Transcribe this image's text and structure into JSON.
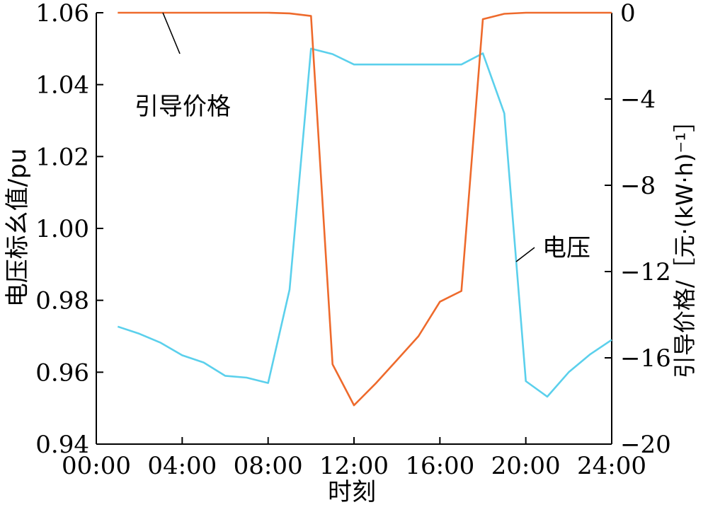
{
  "chart_data": {
    "type": "line",
    "xlabel": "时刻",
    "y_left_label": "电压标幺值/pu",
    "y_right_label": "引导价格/［元·(kW·h)⁻¹］",
    "x_ticks": [
      "00:00",
      "04:00",
      "08:00",
      "12:00",
      "16:00",
      "20:00",
      "24:00"
    ],
    "xlim": [
      0,
      24
    ],
    "y_left_lim": [
      0.94,
      1.06
    ],
    "y_left_ticks": [
      "0.94",
      "0.96",
      "0.98",
      "1.00",
      "1.02",
      "1.04",
      "1.06"
    ],
    "y_right_lim": [
      -20,
      0
    ],
    "y_right_ticks": [
      "-20",
      "-16",
      "-12",
      "-8",
      "-4",
      "0"
    ],
    "grid": false,
    "series": [
      {
        "name": "电压",
        "axis": "left",
        "color": "#5bd0ec",
        "x": [
          1,
          2,
          3,
          4,
          5,
          6,
          7,
          8,
          9,
          10,
          11,
          12,
          13,
          14,
          15,
          16,
          17,
          18,
          19,
          20,
          21,
          22,
          23,
          24
        ],
        "values": [
          0.9727,
          0.9707,
          0.9682,
          0.9647,
          0.9627,
          0.959,
          0.9585,
          0.957,
          0.983,
          1.05,
          1.0485,
          1.0456,
          1.0456,
          1.0456,
          1.0456,
          1.0456,
          1.0456,
          1.0487,
          1.032,
          0.9575,
          0.9532,
          0.96,
          0.965,
          0.969
        ]
      },
      {
        "name": "引导价格",
        "axis": "right",
        "color": "#ee6a2c",
        "x": [
          1,
          2,
          3,
          4,
          5,
          6,
          7,
          8,
          9,
          10,
          11,
          12,
          13,
          14,
          15,
          16,
          17,
          18,
          19,
          20,
          21,
          22,
          23,
          24
        ],
        "values": [
          0,
          0,
          0,
          0,
          0,
          0,
          0,
          0,
          -0.03,
          -0.15,
          -16.3,
          -18.2,
          -17.2,
          -16.1,
          -15.0,
          -13.4,
          -12.9,
          -0.3,
          -0.05,
          0,
          0,
          0,
          0,
          0
        ]
      }
    ],
    "annotations": [
      {
        "text": "引导价格",
        "series": "引导价格",
        "at_x": 3.1
      },
      {
        "text": "电压",
        "series": "电压",
        "at_x": 19.8
      }
    ]
  }
}
